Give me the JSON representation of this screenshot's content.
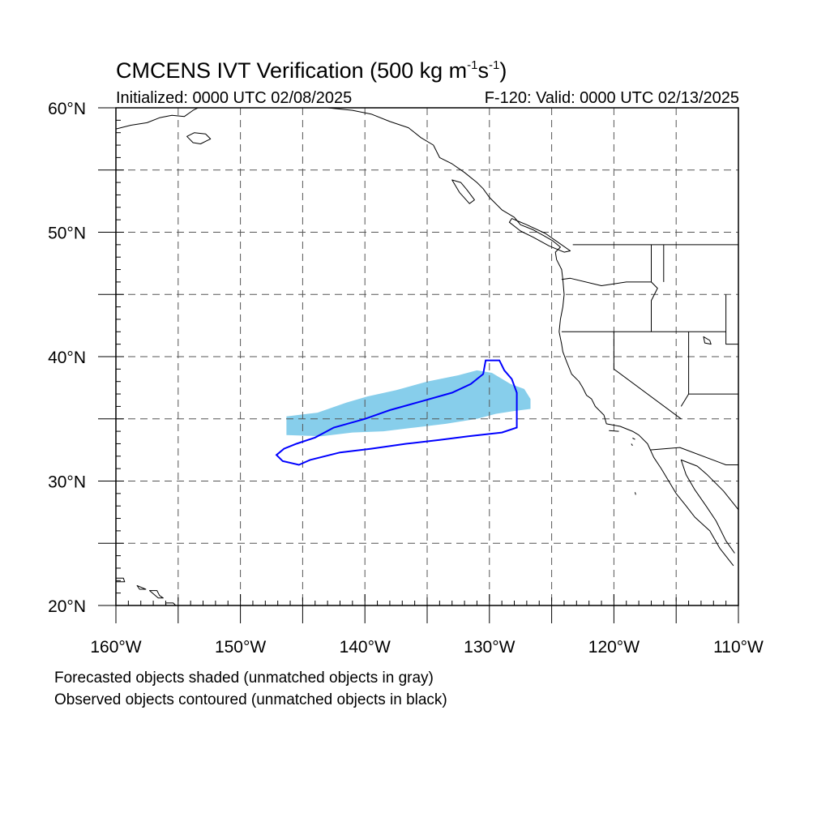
{
  "title": {
    "main": "CMCENS IVT Verification (500 kg m",
    "exp1": "-1",
    "mid": "s",
    "exp2": "-1",
    "end": ")"
  },
  "subtitle_left": "Initialized: 0000 UTC 02/08/2025",
  "subtitle_right": "F-120: Valid: 0000 UTC 02/13/2025",
  "map": {
    "lon_range": [
      -160,
      -110
    ],
    "lat_range": [
      20,
      60
    ],
    "grid": "dashed every 5 degrees",
    "lat_labels": [
      {
        "lat": 60,
        "text": "60°N"
      },
      {
        "lat": 50,
        "text": "50°N"
      },
      {
        "lat": 40,
        "text": "40°N"
      },
      {
        "lat": 30,
        "text": "30°N"
      },
      {
        "lat": 20,
        "text": "20°N"
      }
    ],
    "lon_labels": [
      {
        "lon": -160,
        "text": "160°W"
      },
      {
        "lon": -150,
        "text": "150°W"
      },
      {
        "lon": -140,
        "text": "140°W"
      },
      {
        "lon": -130,
        "text": "130°W"
      },
      {
        "lon": -120,
        "text": "120°W"
      },
      {
        "lon": -110,
        "text": "110°W"
      }
    ],
    "forecast_object_color": "#87ceeb",
    "observed_contour_color": "#0000ff",
    "coast_color": "#000000",
    "forecast_object": [
      [
        -146.3,
        35.2
      ],
      [
        -143.8,
        35.5
      ],
      [
        -141.5,
        36.3
      ],
      [
        -139.8,
        36.8
      ],
      [
        -137.5,
        37.3
      ],
      [
        -135,
        38
      ],
      [
        -132.5,
        38.5
      ],
      [
        -131,
        38.9
      ],
      [
        -129.8,
        38.7
      ],
      [
        -128.3,
        37.8
      ],
      [
        -127.2,
        37.4
      ],
      [
        -126.7,
        36.6
      ],
      [
        -126.7,
        35.8
      ],
      [
        -128.2,
        35.6
      ],
      [
        -129.5,
        35.4
      ],
      [
        -131,
        35
      ],
      [
        -133.5,
        34.6
      ],
      [
        -136,
        34.3
      ],
      [
        -138.5,
        34
      ],
      [
        -141,
        33.9
      ],
      [
        -143.5,
        33.6
      ],
      [
        -146.3,
        33.7
      ]
    ],
    "observed_contour": [
      [
        -147.1,
        32.1
      ],
      [
        -146.5,
        32.6
      ],
      [
        -145.5,
        33
      ],
      [
        -144,
        33.5
      ],
      [
        -142.5,
        34.3
      ],
      [
        -140,
        35
      ],
      [
        -138,
        35.7
      ],
      [
        -135.5,
        36.4
      ],
      [
        -133,
        37.1
      ],
      [
        -131.5,
        37.8
      ],
      [
        -130.5,
        38.6
      ],
      [
        -130.3,
        39.7
      ],
      [
        -129.2,
        39.7
      ],
      [
        -128.8,
        38.9
      ],
      [
        -128.2,
        38.2
      ],
      [
        -127.8,
        37.1
      ],
      [
        -127.8,
        34.3
      ],
      [
        -129,
        33.9
      ],
      [
        -131.7,
        33.6
      ],
      [
        -134,
        33.3
      ],
      [
        -136.7,
        33
      ],
      [
        -139.5,
        32.6
      ],
      [
        -142,
        32.3
      ],
      [
        -144.4,
        31.7
      ],
      [
        -145.3,
        31.3
      ],
      [
        -146.6,
        31.6
      ]
    ],
    "coastline": [
      [
        -147.5,
        60
      ],
      [
        -146.5,
        60.6
      ],
      [
        -145,
        60.3
      ],
      [
        -143,
        60
      ],
      [
        -141,
        59.8
      ],
      [
        -139.5,
        59.5
      ],
      [
        -138,
        58.9
      ],
      [
        -136.5,
        58.4
      ],
      [
        -135.5,
        57.6
      ],
      [
        -134.5,
        57
      ],
      [
        -134,
        56
      ],
      [
        -133,
        55.5
      ],
      [
        -132,
        54.8
      ],
      [
        -131,
        54
      ],
      [
        -130.5,
        53.5
      ],
      [
        -130,
        52.8
      ],
      [
        -129,
        51.8
      ],
      [
        -128,
        51.2
      ],
      [
        -127.5,
        50.6
      ],
      [
        -126.5,
        50.2
      ],
      [
        -125.6,
        49.7
      ],
      [
        -124.9,
        49.3
      ],
      [
        -124.3,
        48.8
      ],
      [
        -124.7,
        48.4
      ],
      [
        -124.6,
        47.8
      ],
      [
        -124.2,
        47
      ],
      [
        -124.1,
        46.2
      ],
      [
        -124,
        45
      ],
      [
        -124.1,
        44
      ],
      [
        -124.3,
        43
      ],
      [
        -124.4,
        42
      ],
      [
        -124.2,
        41
      ],
      [
        -124.1,
        40.4
      ],
      [
        -123.8,
        39.6
      ],
      [
        -123.4,
        38.6
      ],
      [
        -122.8,
        38
      ],
      [
        -122.5,
        37.5
      ],
      [
        -122.2,
        36.9
      ],
      [
        -121.8,
        36.6
      ],
      [
        -121.5,
        36
      ],
      [
        -120.8,
        35.3
      ],
      [
        -120.6,
        34.6
      ],
      [
        -119.5,
        34.4
      ],
      [
        -118.5,
        34
      ],
      [
        -118,
        33.7
      ],
      [
        -117.3,
        33
      ],
      [
        -116.8,
        31.9
      ],
      [
        -116.2,
        31
      ],
      [
        -115.6,
        30
      ],
      [
        -115,
        29
      ],
      [
        -114.2,
        28
      ],
      [
        -113.5,
        27.1
      ],
      [
        -112.3,
        26
      ],
      [
        -111.5,
        24.6
      ],
      [
        -110.4,
        23.2
      ]
    ],
    "gulf_coast": [
      [
        -110,
        27.7
      ],
      [
        -111.2,
        29.2
      ],
      [
        -112.5,
        30.5
      ],
      [
        -113.3,
        31.2
      ],
      [
        -114.6,
        31.7
      ],
      [
        -114.2,
        30.5
      ],
      [
        -113.5,
        29.3
      ],
      [
        -112.6,
        28
      ],
      [
        -111.8,
        26.8
      ],
      [
        -111,
        25.2
      ],
      [
        -110.3,
        24.2
      ]
    ],
    "vancouver_island": [
      [
        -128.4,
        50.8
      ],
      [
        -127.5,
        50.1
      ],
      [
        -126.5,
        49.6
      ],
      [
        -125.2,
        48.9
      ],
      [
        -124,
        48.4
      ],
      [
        -123.5,
        48.5
      ],
      [
        -124.5,
        49.2
      ],
      [
        -125.5,
        49.9
      ],
      [
        -127,
        50.6
      ],
      [
        -128.2,
        51.1
      ]
    ],
    "haida_gwaii": [
      [
        -133,
        54.2
      ],
      [
        -132.4,
        53.2
      ],
      [
        -131.6,
        52.3
      ],
      [
        -131.2,
        52.6
      ],
      [
        -131.8,
        53.4
      ],
      [
        -132.3,
        54
      ]
    ],
    "alaska_peninsula": [
      [
        -160,
        58.3
      ],
      [
        -158.8,
        58.6
      ],
      [
        -157.5,
        58.8
      ],
      [
        -156.5,
        59.2
      ],
      [
        -155.5,
        59.4
      ],
      [
        -154.5,
        59.3
      ],
      [
        -153.8,
        59.8
      ],
      [
        -153,
        60.2
      ],
      [
        -152.5,
        60.5
      ]
    ],
    "kodiak": [
      [
        -154.3,
        57.7
      ],
      [
        -153.8,
        57.2
      ],
      [
        -153.2,
        57.1
      ],
      [
        -152.4,
        57.5
      ],
      [
        -152.8,
        57.9
      ],
      [
        -153.7,
        58
      ]
    ],
    "us_canada_border": [
      [
        -123.3,
        49
      ],
      [
        -110,
        49
      ]
    ],
    "state_lines": [
      [
        [
          -117,
          49
        ],
        [
          -117,
          46
        ]
      ],
      [
        [
          -124.2,
          46.2
        ],
        [
          -123.5,
          46.3
        ],
        [
          -121,
          45.7
        ],
        [
          -119,
          46
        ],
        [
          -117,
          46
        ]
      ],
      [
        [
          -117,
          46
        ],
        [
          -116.5,
          45.5
        ],
        [
          -117,
          44.5
        ],
        [
          -117,
          42
        ]
      ],
      [
        [
          -124.2,
          42
        ],
        [
          -111,
          42
        ]
      ],
      [
        [
          -120,
          42
        ],
        [
          -120,
          39
        ],
        [
          -114.6,
          35
        ]
      ],
      [
        [
          -114,
          42
        ],
        [
          -114,
          37
        ],
        [
          -114.6,
          36
        ]
      ],
      [
        [
          -111,
          45
        ],
        [
          -111,
          41
        ],
        [
          -110,
          41
        ]
      ],
      [
        [
          -114,
          37
        ],
        [
          -110,
          37
        ]
      ],
      [
        [
          -117.1,
          32.5
        ],
        [
          -114.7,
          32.7
        ],
        [
          -111,
          31.3
        ],
        [
          -110,
          31.3
        ]
      ],
      [
        [
          -116,
          49
        ],
        [
          -116,
          46
        ]
      ]
    ],
    "great_salt_lake": [
      [
        -112.8,
        41.6
      ],
      [
        -112.3,
        41.3
      ],
      [
        -112.2,
        41
      ],
      [
        -112.7,
        41.1
      ]
    ],
    "hawaii_islands": [
      [
        [
          -160.3,
          22.2
        ],
        [
          -159.4,
          22.2
        ],
        [
          -159.3,
          21.9
        ],
        [
          -160.1,
          21.9
        ]
      ],
      [
        [
          -158.3,
          21.6
        ],
        [
          -157.6,
          21.3
        ],
        [
          -158.1,
          21.3
        ]
      ],
      [
        [
          -157.3,
          21.2
        ],
        [
          -156.7,
          21.2
        ],
        [
          -156.5,
          20.8
        ],
        [
          -156.2,
          20.6
        ],
        [
          -156.6,
          20.6
        ]
      ],
      [
        [
          -156,
          20.2
        ],
        [
          -155.4,
          20.2
        ],
        [
          -154.8,
          19.6
        ],
        [
          -155.5,
          19.1
        ],
        [
          -155.9,
          19.6
        ]
      ]
    ],
    "socal_islands": [
      [
        [
          -120.4,
          34.05
        ],
        [
          -119.6,
          34
        ]
      ],
      [
        [
          -118.5,
          33.45
        ],
        [
          -118.3,
          33.35
        ]
      ],
      [
        [
          -118.6,
          33
        ],
        [
          -118.5,
          32.85
        ]
      ]
    ],
    "guadalupe_island": [
      [
        -118.3,
        29.1
      ],
      [
        -118.25,
        28.9
      ]
    ]
  },
  "notes": [
    "Forecasted objects shaded (unmatched objects in gray)",
    "Observed objects contoured (unmatched objects in black)"
  ]
}
